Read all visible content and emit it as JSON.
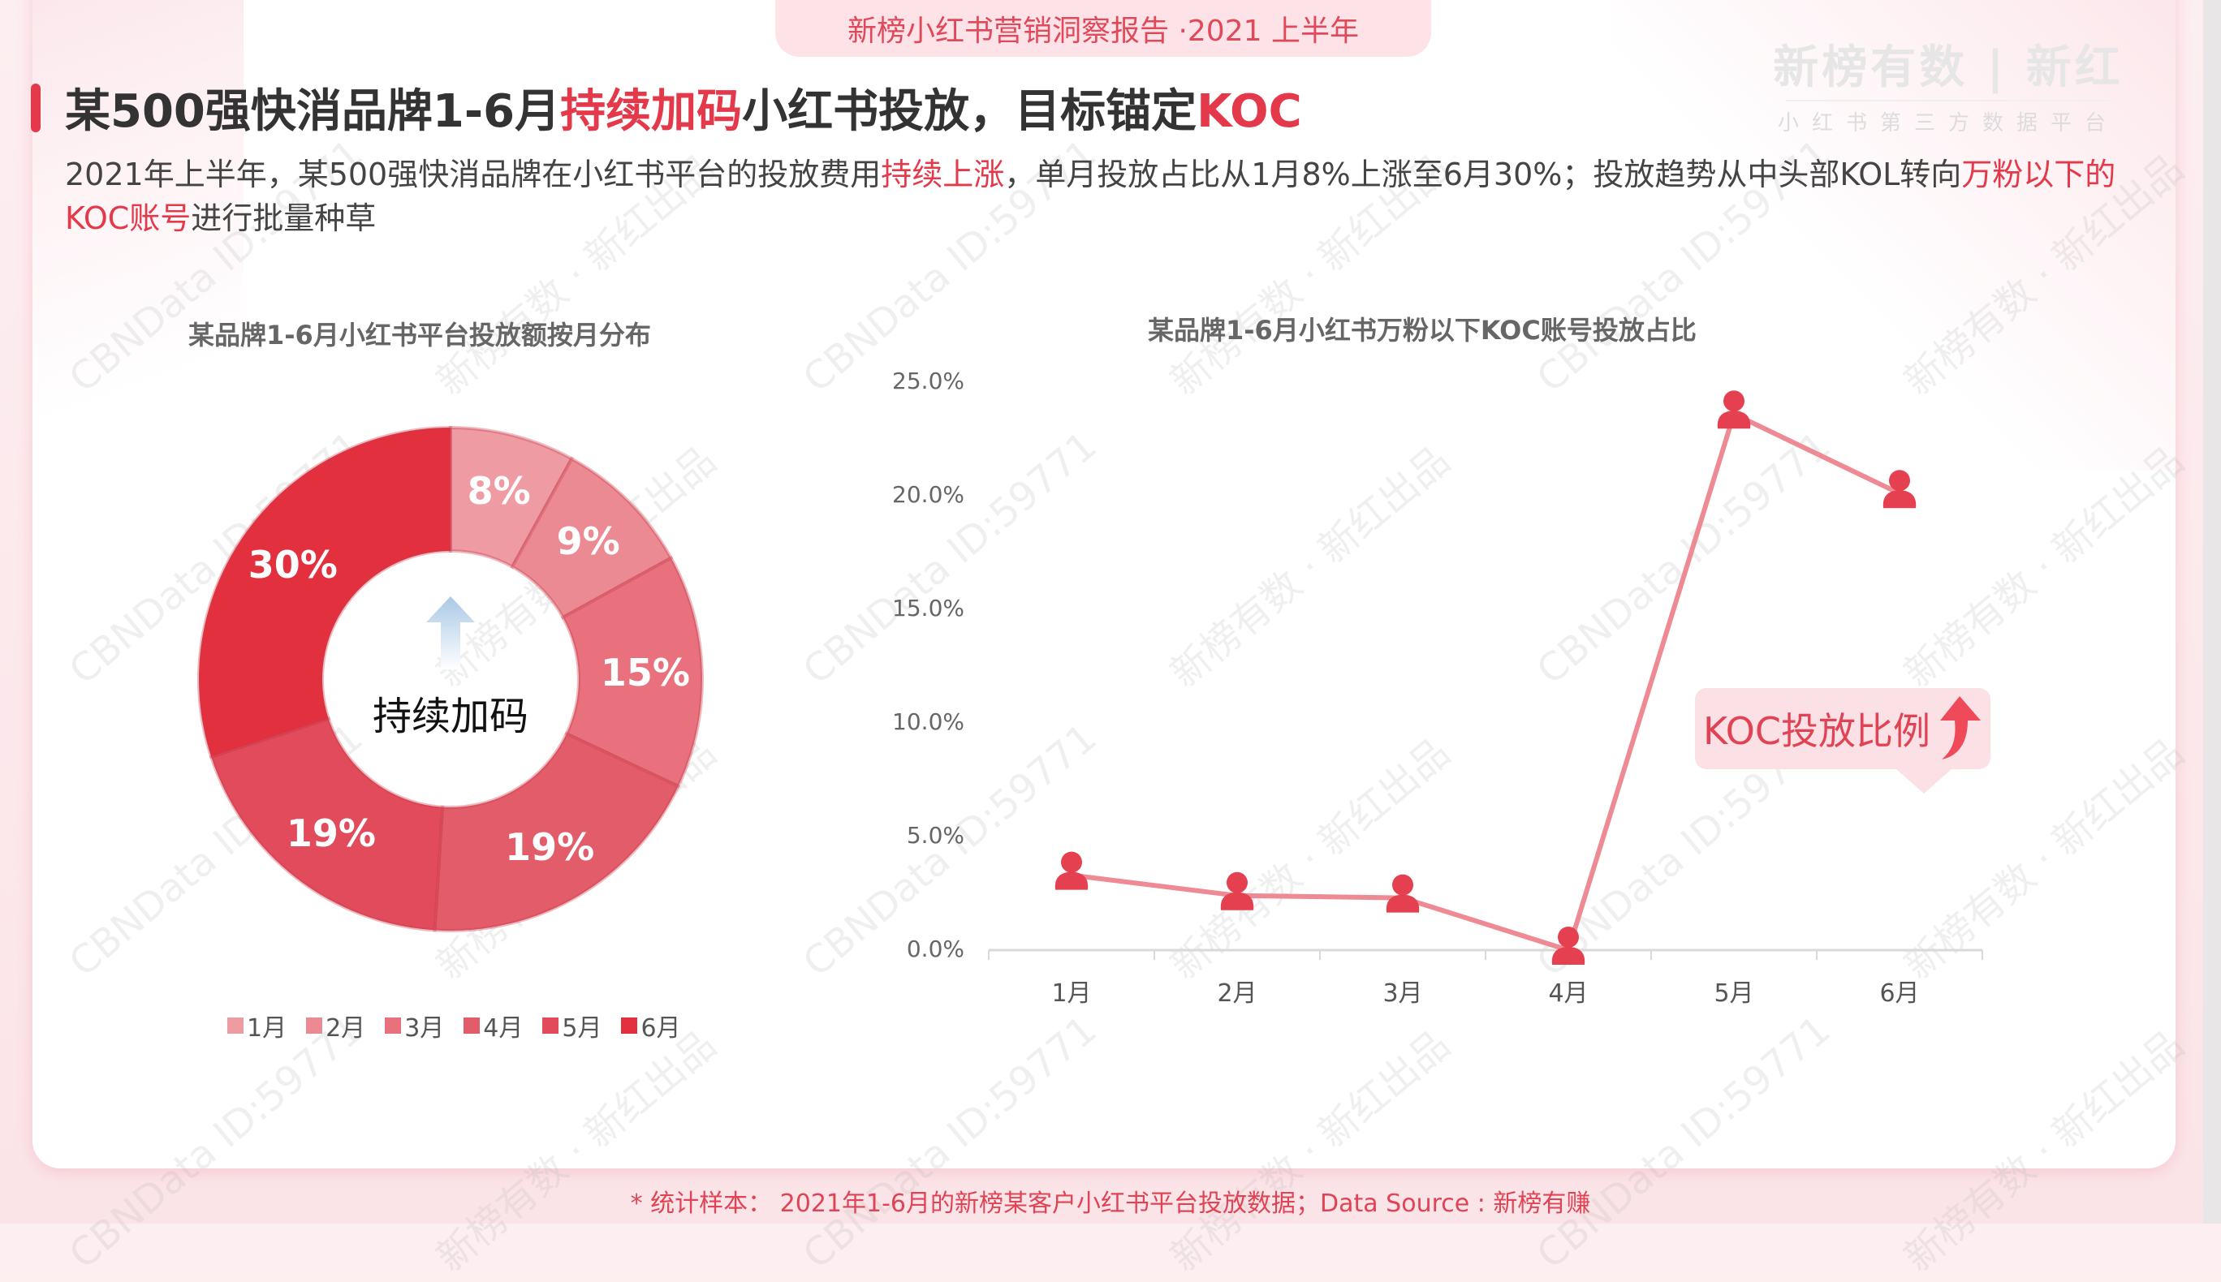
{
  "header": {
    "tab_label": "新榜小红书营销洞察报告 ·2021 上半年",
    "brand_main": "新榜有数 | 新红",
    "brand_sub": "小红书第三方数据平台"
  },
  "title": {
    "part1": "某500强快消品牌1-6月",
    "highlight1": "持续加码",
    "part2": "小红书投放，目标锚定",
    "highlight2": "KOC"
  },
  "description": {
    "part1": "2021年上半年，某500强快消品牌在小红书平台的投放费用",
    "highlight1": "持续上涨",
    "part2": "，单月投放占比从1月8%上涨至6月30%；投放趋势从中头部KOL转向",
    "highlight2": "万粉以下的KOC账号",
    "part3": "进行批量种草"
  },
  "donut": {
    "center_text": "持续加码",
    "center_icon": "up-arrow-icon"
  },
  "callout": {
    "label": "KOC投放比例",
    "icon": "curved-up-arrow-icon"
  },
  "footer": {
    "note": "* 统计样本： 2021年1-6月的新榜某客户小红书平台投放数据；Data Source : 新榜有赚"
  },
  "watermarks": {
    "a": "CBNData ID:59771",
    "b": "新榜有数 · 新红出品"
  },
  "colors": {
    "accent": "#e4394b",
    "line": "#ee8a94",
    "marker": "#e5404f",
    "donut": [
      "#ee9ba3",
      "#ec8a93",
      "#e8717d",
      "#e35c6a",
      "#e14b5b",
      "#e3303f"
    ]
  },
  "chart_data": [
    {
      "type": "pie",
      "subtype": "donut",
      "title": "某品牌1-6月小红书平台投放额按月分布",
      "categories": [
        "1月",
        "2月",
        "3月",
        "4月",
        "5月",
        "6月"
      ],
      "values": [
        8,
        9,
        15,
        19,
        19,
        30
      ],
      "labels": [
        "8%",
        "9%",
        "15%",
        "19%",
        "19%",
        "30%"
      ],
      "center_text": "持续加码",
      "legend_position": "bottom"
    },
    {
      "type": "line",
      "title": "某品牌1-6月小红书万粉以下KOC账号投放占比",
      "categories": [
        "1月",
        "2月",
        "3月",
        "4月",
        "5月",
        "6月"
      ],
      "series": [
        {
          "name": "KOC投放比例",
          "values": [
            3.3,
            2.4,
            2.3,
            0.0,
            23.6,
            20.1
          ]
        }
      ],
      "y_ticks": [
        "0.0%",
        "5.0%",
        "10.0%",
        "15.0%",
        "20.0%",
        "25.0%"
      ],
      "ylim": [
        0,
        25
      ],
      "xlabel": "",
      "ylabel": "",
      "grid": false,
      "annotation": "KOC投放比例 ↑"
    }
  ]
}
